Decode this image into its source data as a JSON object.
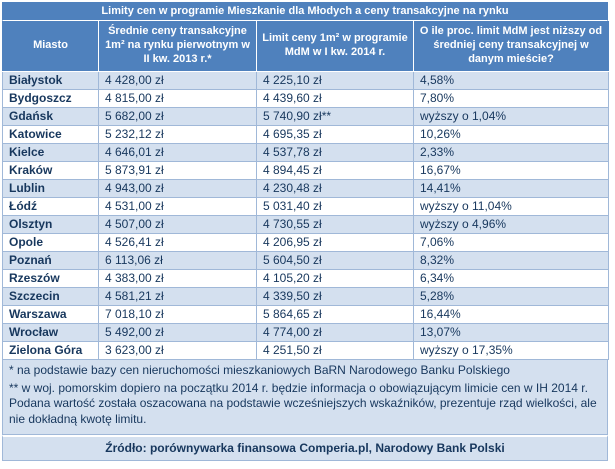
{
  "chart_data": {
    "type": "table",
    "title": "Limity cen w programie Mieszkanie dla Młodych a ceny transakcyjne na rynku",
    "columns": [
      "Miasto",
      "Średnie ceny transakcyjne 1m² na rynku pierwotnym w II kw. 2013 r.*",
      "Limit ceny 1m² w programie MdM w I kw. 2014 r.",
      "O ile proc. limit MdM jest niższy od średniej ceny transakcyjnej w danym mieście?"
    ],
    "rows": [
      {
        "city": "Białystok",
        "avg_price_2013": "4 428,00 zł",
        "mdm_limit_2014": "4 225,10 zł",
        "difference": "4,58%"
      },
      {
        "city": "Bydgoszcz",
        "avg_price_2013": "4 815,00 zł",
        "mdm_limit_2014": "4 439,60 zł",
        "difference": "7,80%"
      },
      {
        "city": "Gdańsk",
        "avg_price_2013": "5 682,00 zł",
        "mdm_limit_2014": "5 740,90 zł**",
        "difference": "wyższy o 1,04%"
      },
      {
        "city": "Katowice",
        "avg_price_2013": "5 232,12 zł",
        "mdm_limit_2014": "4 695,35 zł",
        "difference": "10,26%"
      },
      {
        "city": "Kielce",
        "avg_price_2013": "4 646,01 zł",
        "mdm_limit_2014": "4 537,78 zł",
        "difference": "2,33%"
      },
      {
        "city": "Kraków",
        "avg_price_2013": "5 873,91 zł",
        "mdm_limit_2014": "4 894,45 zł",
        "difference": "16,67%"
      },
      {
        "city": "Lublin",
        "avg_price_2013": "4 943,00 zł",
        "mdm_limit_2014": "4 230,48 zł",
        "difference": "14,41%"
      },
      {
        "city": "Łódź",
        "avg_price_2013": "4 531,00 zł",
        "mdm_limit_2014": "5 031,40 zł",
        "difference": "wyższy o 11,04%"
      },
      {
        "city": "Olsztyn",
        "avg_price_2013": "4 507,00 zł",
        "mdm_limit_2014": "4 730,55 zł",
        "difference": "wyższy o 4,96%"
      },
      {
        "city": "Opole",
        "avg_price_2013": "4 526,41 zł",
        "mdm_limit_2014": "4 206,95 zł",
        "difference": "7,06%"
      },
      {
        "city": "Poznań",
        "avg_price_2013": "6 113,06 zł",
        "mdm_limit_2014": "5 604,50 zł",
        "difference": "8,32%"
      },
      {
        "city": "Rzeszów",
        "avg_price_2013": "4 383,00 zł",
        "mdm_limit_2014": "4 105,20 zł",
        "difference": "6,34%"
      },
      {
        "city": "Szczecin",
        "avg_price_2013": "4 581,21 zł",
        "mdm_limit_2014": "4 339,50 zł",
        "difference": "5,28%"
      },
      {
        "city": "Warszawa",
        "avg_price_2013": "7 018,10 zł",
        "mdm_limit_2014": "5 864,65 zł",
        "difference": "16,44%"
      },
      {
        "city": "Wrocław",
        "avg_price_2013": "5 492,00 zł",
        "mdm_limit_2014": "4 774,00 zł",
        "difference": "13,07%"
      },
      {
        "city": "Zielona Góra",
        "avg_price_2013": "3 623,00 zł",
        "mdm_limit_2014": "4 251,50 zł",
        "difference": "wyższy o 17,35%"
      }
    ]
  },
  "footnotes": [
    "* na podstawie bazy cen nieruchomości mieszkaniowych BaRN Narodowego Banku Polskiego",
    "** w woj. pomorskim dopiero na początku 2014 r. będzie informacja o obowiązującym limicie cen w IH 2014 r. Podana wartość została oszacowana na podstawie wcześniejszych wskaźników, prezentuje rząd wielkości, ale nie dokładną kwotę limitu."
  ],
  "source": "Źródło: porównywarka finansowa Comperia.pl, Narodowy Bank Polski",
  "colors": {
    "header_bg": "#4f81bd",
    "row_shade_bg": "#d4e0ef",
    "row_plain_bg": "#ffffff",
    "text_dark": "#17375d",
    "grid_border": "#a0b8d8"
  }
}
